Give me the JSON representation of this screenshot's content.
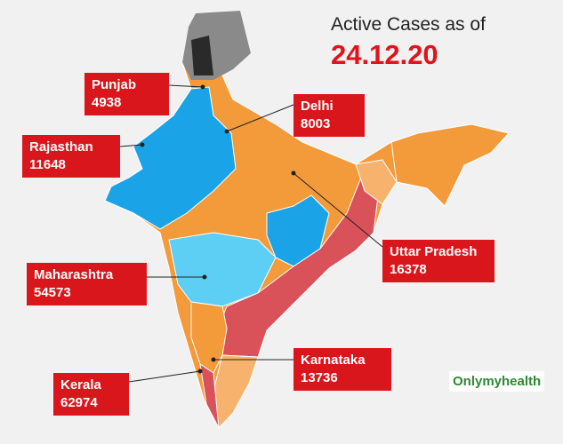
{
  "title": "Active Cases as of",
  "date": "24.12.20",
  "states": [
    {
      "name": "Punjab",
      "cases": 4938
    },
    {
      "name": "Delhi",
      "cases": 8003
    },
    {
      "name": "Rajasthan",
      "cases": 11648
    },
    {
      "name": "Maharashtra",
      "cases": 54573
    },
    {
      "name": "Uttar Pradesh",
      "cases": 16378
    },
    {
      "name": "Karnataka",
      "cases": 13736
    },
    {
      "name": "Kerala",
      "cases": 62974
    }
  ],
  "logo": "Onlymyhealth"
}
